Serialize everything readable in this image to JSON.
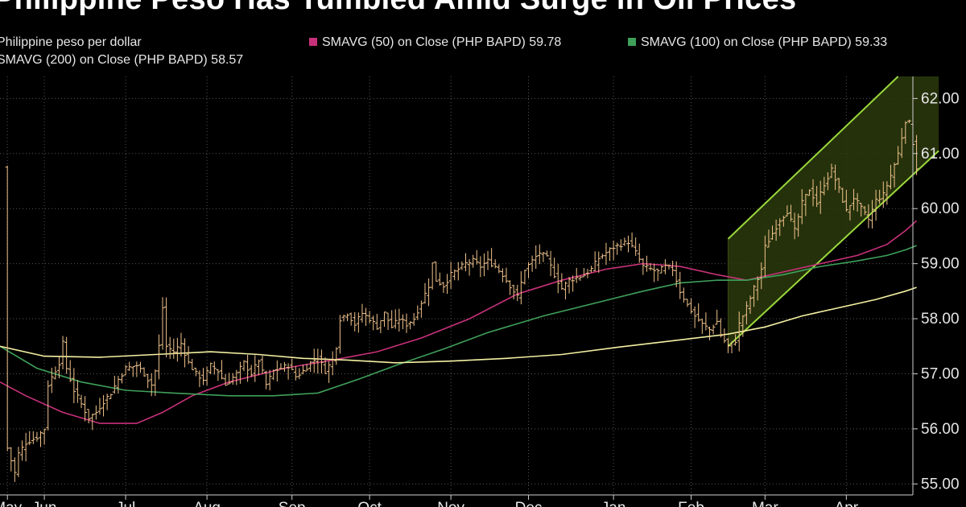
{
  "title": "Philippine Peso Has Tumbled Amid Surge in Oil Prices",
  "legend": {
    "peso": "Philippine peso per dollar",
    "sma50": "SMAVG (50)  on Close (PHP BAPD) 59.78",
    "sma100": "SMAVG (100)  on Close (PHP BAPD) 59.33",
    "sma200": "SMAVG (200)  on Close (PHP BAPD) 58.57"
  },
  "colors": {
    "background": "#000000",
    "price": "#f2c48d",
    "sma50": "#c8317a",
    "sma100": "#3fa05a",
    "sma200": "#f4f0a2",
    "channel_line": "#9ad83c",
    "channel_fill": "#2b3a0d",
    "axis": "#cfcfcf"
  },
  "chart_data": {
    "type": "line",
    "x_unit": "trading day index",
    "ylim": [
      54.8,
      62.4
    ],
    "y_ticks": [
      55,
      56,
      57,
      58,
      59,
      60,
      61,
      62
    ],
    "y_tick_labels": [
      "55.00",
      "56.00",
      "57.00",
      "58.00",
      "59.00",
      "60.00",
      "61.00",
      "62.00"
    ],
    "x_ticks": [
      {
        "label": "May",
        "x": 0
      },
      {
        "label": "Jun",
        "x": 10
      },
      {
        "label": "Jul",
        "x": 32
      },
      {
        "label": "Aug",
        "x": 54
      },
      {
        "label": "Sep",
        "x": 77
      },
      {
        "label": "Oct",
        "x": 98
      },
      {
        "label": "Nov",
        "x": 120
      },
      {
        "label": "Dec",
        "x": 141
      },
      {
        "label": "Jan",
        "x": 164
      },
      {
        "label": "Feb",
        "x": 185
      },
      {
        "label": "Mar",
        "x": 205
      },
      {
        "label": "Apr",
        "x": 227
      }
    ],
    "x_range": [
      -2,
      245
    ],
    "grid": "dotted",
    "price_series": {
      "name": "Philippine peso per dollar",
      "anchors": [
        [
          0,
          55.65
        ],
        [
          2,
          55.2
        ],
        [
          3,
          55.55
        ],
        [
          5,
          55.75
        ],
        [
          8,
          55.85
        ],
        [
          10,
          56.0
        ],
        [
          11,
          56.8
        ],
        [
          14,
          57.2
        ],
        [
          15,
          57.55
        ],
        [
          16,
          57.1
        ],
        [
          18,
          56.7
        ],
        [
          20,
          56.45
        ],
        [
          22,
          56.2
        ],
        [
          24,
          56.3
        ],
        [
          26,
          56.5
        ],
        [
          28,
          56.65
        ],
        [
          30,
          56.9
        ],
        [
          32,
          57.1
        ],
        [
          35,
          57.15
        ],
        [
          37,
          57.0
        ],
        [
          39,
          56.8
        ],
        [
          40,
          57.05
        ],
        [
          41,
          57.5
        ],
        [
          42,
          58.2
        ],
        [
          43,
          57.5
        ],
        [
          45,
          57.4
        ],
        [
          47,
          57.55
        ],
        [
          49,
          57.2
        ],
        [
          51,
          57.0
        ],
        [
          53,
          56.9
        ],
        [
          55,
          57.15
        ],
        [
          57,
          57.05
        ],
        [
          59,
          56.8
        ],
        [
          62,
          57.0
        ],
        [
          64,
          57.2
        ],
        [
          66,
          57.0
        ],
        [
          68,
          57.25
        ],
        [
          70,
          56.8
        ],
        [
          72,
          57.05
        ],
        [
          74,
          57.1
        ],
        [
          76,
          57.15
        ],
        [
          78,
          56.95
        ],
        [
          80,
          57.05
        ],
        [
          82,
          57.2
        ],
        [
          84,
          57.3
        ],
        [
          86,
          57.05
        ],
        [
          88,
          57.25
        ],
        [
          89,
          57.5
        ],
        [
          90,
          58.0
        ],
        [
          92,
          58.1
        ],
        [
          94,
          57.9
        ],
        [
          96,
          58.1
        ],
        [
          98,
          58.0
        ],
        [
          100,
          57.85
        ],
        [
          102,
          58.1
        ],
        [
          104,
          57.85
        ],
        [
          106,
          58.0
        ],
        [
          108,
          57.9
        ],
        [
          110,
          58.0
        ],
        [
          112,
          58.3
        ],
        [
          114,
          58.6
        ],
        [
          115,
          59.0
        ],
        [
          116,
          58.7
        ],
        [
          118,
          58.6
        ],
        [
          120,
          58.8
        ],
        [
          122,
          58.9
        ],
        [
          124,
          59.0
        ],
        [
          126,
          59.05
        ],
        [
          128,
          58.95
        ],
        [
          130,
          59.05
        ],
        [
          132,
          58.95
        ],
        [
          134,
          58.8
        ],
        [
          136,
          58.6
        ],
        [
          138,
          58.4
        ],
        [
          140,
          58.9
        ],
        [
          142,
          59.05
        ],
        [
          144,
          59.2
        ],
        [
          146,
          59.1
        ],
        [
          148,
          58.8
        ],
        [
          150,
          58.55
        ],
        [
          152,
          58.7
        ],
        [
          154,
          58.75
        ],
        [
          156,
          58.8
        ],
        [
          158,
          58.9
        ],
        [
          160,
          59.1
        ],
        [
          162,
          59.2
        ],
        [
          164,
          59.3
        ],
        [
          166,
          59.35
        ],
        [
          168,
          59.4
        ],
        [
          170,
          59.2
        ],
        [
          172,
          58.95
        ],
        [
          174,
          58.9
        ],
        [
          176,
          58.85
        ],
        [
          178,
          58.95
        ],
        [
          180,
          58.9
        ],
        [
          182,
          58.5
        ],
        [
          184,
          58.25
        ],
        [
          186,
          58.05
        ],
        [
          188,
          57.9
        ],
        [
          190,
          57.8
        ],
        [
          192,
          57.95
        ],
        [
          193,
          57.7
        ],
        [
          195,
          57.5
        ],
        [
          197,
          57.6
        ],
        [
          198,
          57.9
        ],
        [
          200,
          58.2
        ],
        [
          202,
          58.55
        ],
        [
          204,
          58.9
        ],
        [
          205,
          59.3
        ],
        [
          207,
          59.55
        ],
        [
          209,
          59.8
        ],
        [
          211,
          59.95
        ],
        [
          213,
          59.6
        ],
        [
          215,
          60.1
        ],
        [
          217,
          60.35
        ],
        [
          219,
          60.1
        ],
        [
          221,
          60.45
        ],
        [
          223,
          60.7
        ],
        [
          225,
          60.35
        ],
        [
          227,
          59.95
        ],
        [
          229,
          60.2
        ],
        [
          231,
          60.0
        ],
        [
          233,
          59.8
        ],
        [
          235,
          60.15
        ],
        [
          237,
          60.25
        ],
        [
          239,
          60.6
        ],
        [
          241,
          61.0
        ],
        [
          242,
          61.3
        ],
        [
          243,
          61.6
        ],
        [
          244,
          61.55
        ],
        [
          245,
          61.2
        ],
        [
          246,
          60.75
        ]
      ]
    },
    "series": [
      {
        "name": "SMAVG (50)  on Close (PHP BAPD) 59.78",
        "key": "sma50",
        "points": [
          [
            -2,
            56.85
          ],
          [
            5,
            56.6
          ],
          [
            15,
            56.3
          ],
          [
            25,
            56.1
          ],
          [
            35,
            56.1
          ],
          [
            42,
            56.3
          ],
          [
            50,
            56.6
          ],
          [
            60,
            56.85
          ],
          [
            75,
            57.1
          ],
          [
            88,
            57.25
          ],
          [
            100,
            57.4
          ],
          [
            112,
            57.65
          ],
          [
            125,
            58.0
          ],
          [
            138,
            58.45
          ],
          [
            150,
            58.7
          ],
          [
            162,
            58.9
          ],
          [
            172,
            59.0
          ],
          [
            182,
            58.95
          ],
          [
            192,
            58.8
          ],
          [
            200,
            58.7
          ],
          [
            210,
            58.85
          ],
          [
            220,
            59.0
          ],
          [
            230,
            59.15
          ],
          [
            238,
            59.35
          ],
          [
            243,
            59.6
          ],
          [
            246,
            59.78
          ]
        ]
      },
      {
        "name": "SMAVG (100)  on Close (PHP BAPD) 59.33",
        "key": "sma100",
        "points": [
          [
            -2,
            57.5
          ],
          [
            8,
            57.1
          ],
          [
            20,
            56.85
          ],
          [
            32,
            56.7
          ],
          [
            45,
            56.65
          ],
          [
            60,
            56.6
          ],
          [
            72,
            56.6
          ],
          [
            84,
            56.65
          ],
          [
            95,
            56.9
          ],
          [
            105,
            57.15
          ],
          [
            118,
            57.45
          ],
          [
            130,
            57.75
          ],
          [
            145,
            58.05
          ],
          [
            160,
            58.3
          ],
          [
            172,
            58.5
          ],
          [
            182,
            58.65
          ],
          [
            192,
            58.7
          ],
          [
            200,
            58.7
          ],
          [
            210,
            58.8
          ],
          [
            220,
            58.95
          ],
          [
            230,
            59.05
          ],
          [
            238,
            59.15
          ],
          [
            243,
            59.25
          ],
          [
            246,
            59.33
          ]
        ]
      },
      {
        "name": "SMAVG (200)  on Close (PHP BAPD) 58.57",
        "key": "sma200",
        "points": [
          [
            -2,
            57.5
          ],
          [
            10,
            57.32
          ],
          [
            25,
            57.3
          ],
          [
            40,
            57.35
          ],
          [
            55,
            57.4
          ],
          [
            68,
            57.35
          ],
          [
            80,
            57.28
          ],
          [
            92,
            57.25
          ],
          [
            105,
            57.2
          ],
          [
            120,
            57.23
          ],
          [
            135,
            57.28
          ],
          [
            150,
            57.35
          ],
          [
            165,
            57.48
          ],
          [
            180,
            57.6
          ],
          [
            195,
            57.72
          ],
          [
            205,
            57.85
          ],
          [
            215,
            58.05
          ],
          [
            225,
            58.2
          ],
          [
            235,
            58.35
          ],
          [
            243,
            58.5
          ],
          [
            246,
            58.57
          ]
        ]
      }
    ],
    "channel": {
      "upper": [
        [
          195,
          59.45
        ],
        [
          241,
          62.4
        ]
      ],
      "lower": [
        [
          195,
          57.5
        ],
        [
          252,
          61.05
        ]
      ],
      "fill_polygon": [
        [
          195,
          59.45
        ],
        [
          241,
          62.4
        ],
        [
          252,
          62.4
        ],
        [
          252,
          61.05
        ],
        [
          195,
          57.5
        ]
      ]
    }
  }
}
